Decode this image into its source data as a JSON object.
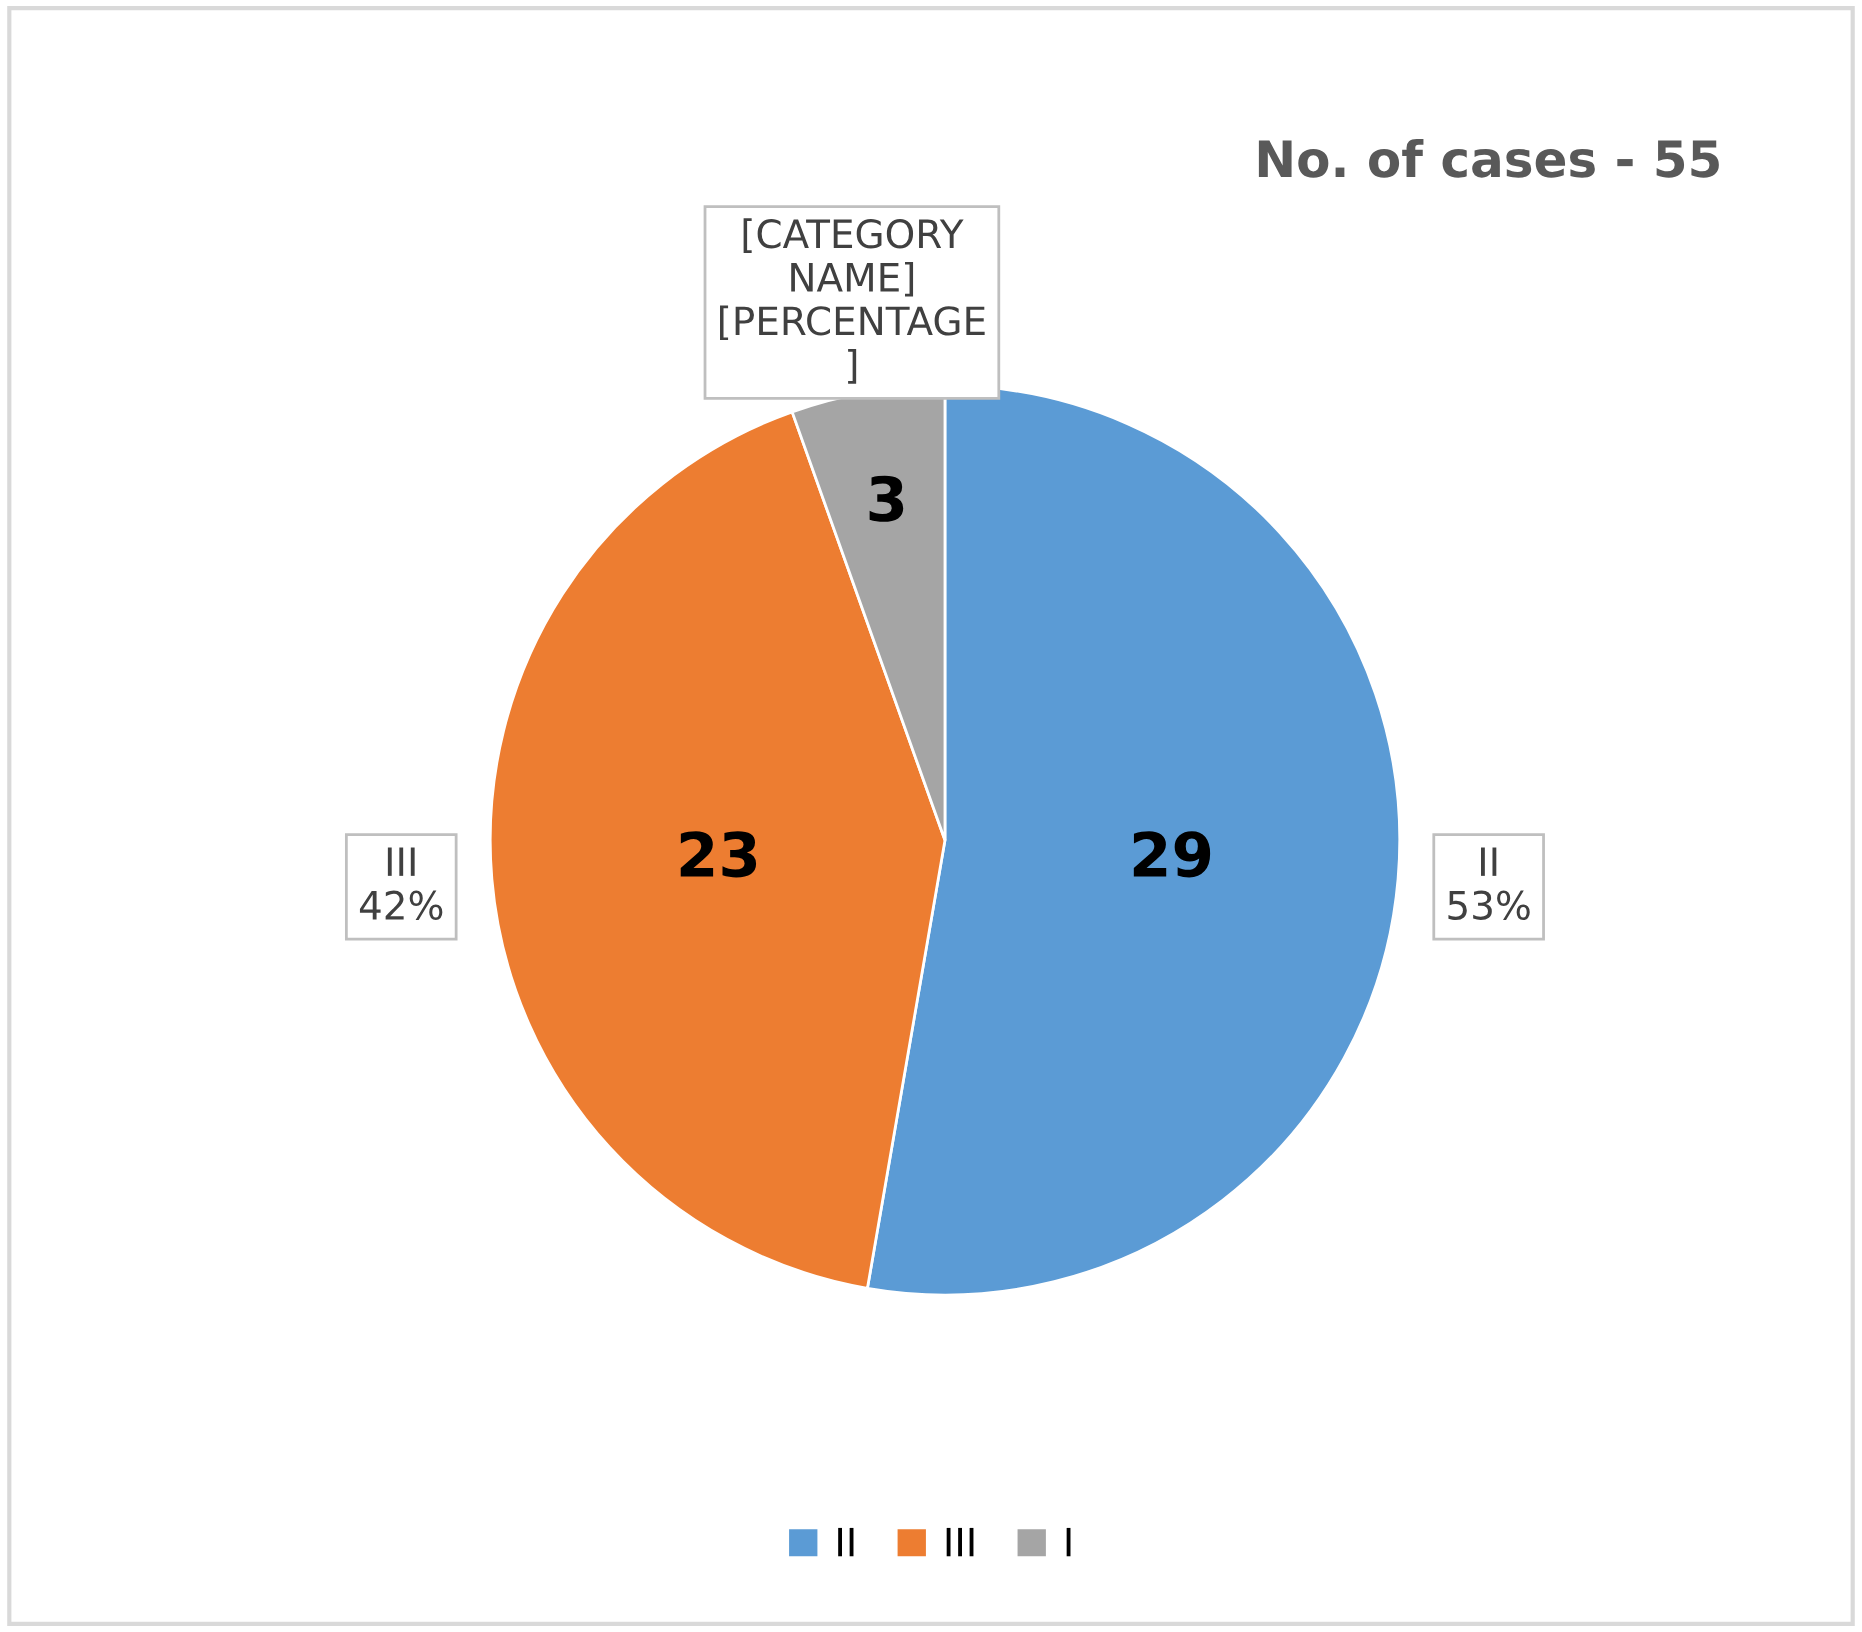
{
  "chart_data": {
    "type": "pie",
    "title": "No. of cases - 55",
    "categories": [
      "II",
      "III",
      "I"
    ],
    "values": [
      29,
      23,
      3
    ],
    "colors": [
      "#5b9bd5",
      "#ed7d31",
      "#a5a5a5"
    ],
    "value_labels": [
      "29",
      "23",
      "3"
    ],
    "annotations": [
      "II\n53%",
      "III\n42%",
      "[CATEGORY\nNAME]\n[PERCENTAGE\n]"
    ],
    "legend": "bottom"
  }
}
